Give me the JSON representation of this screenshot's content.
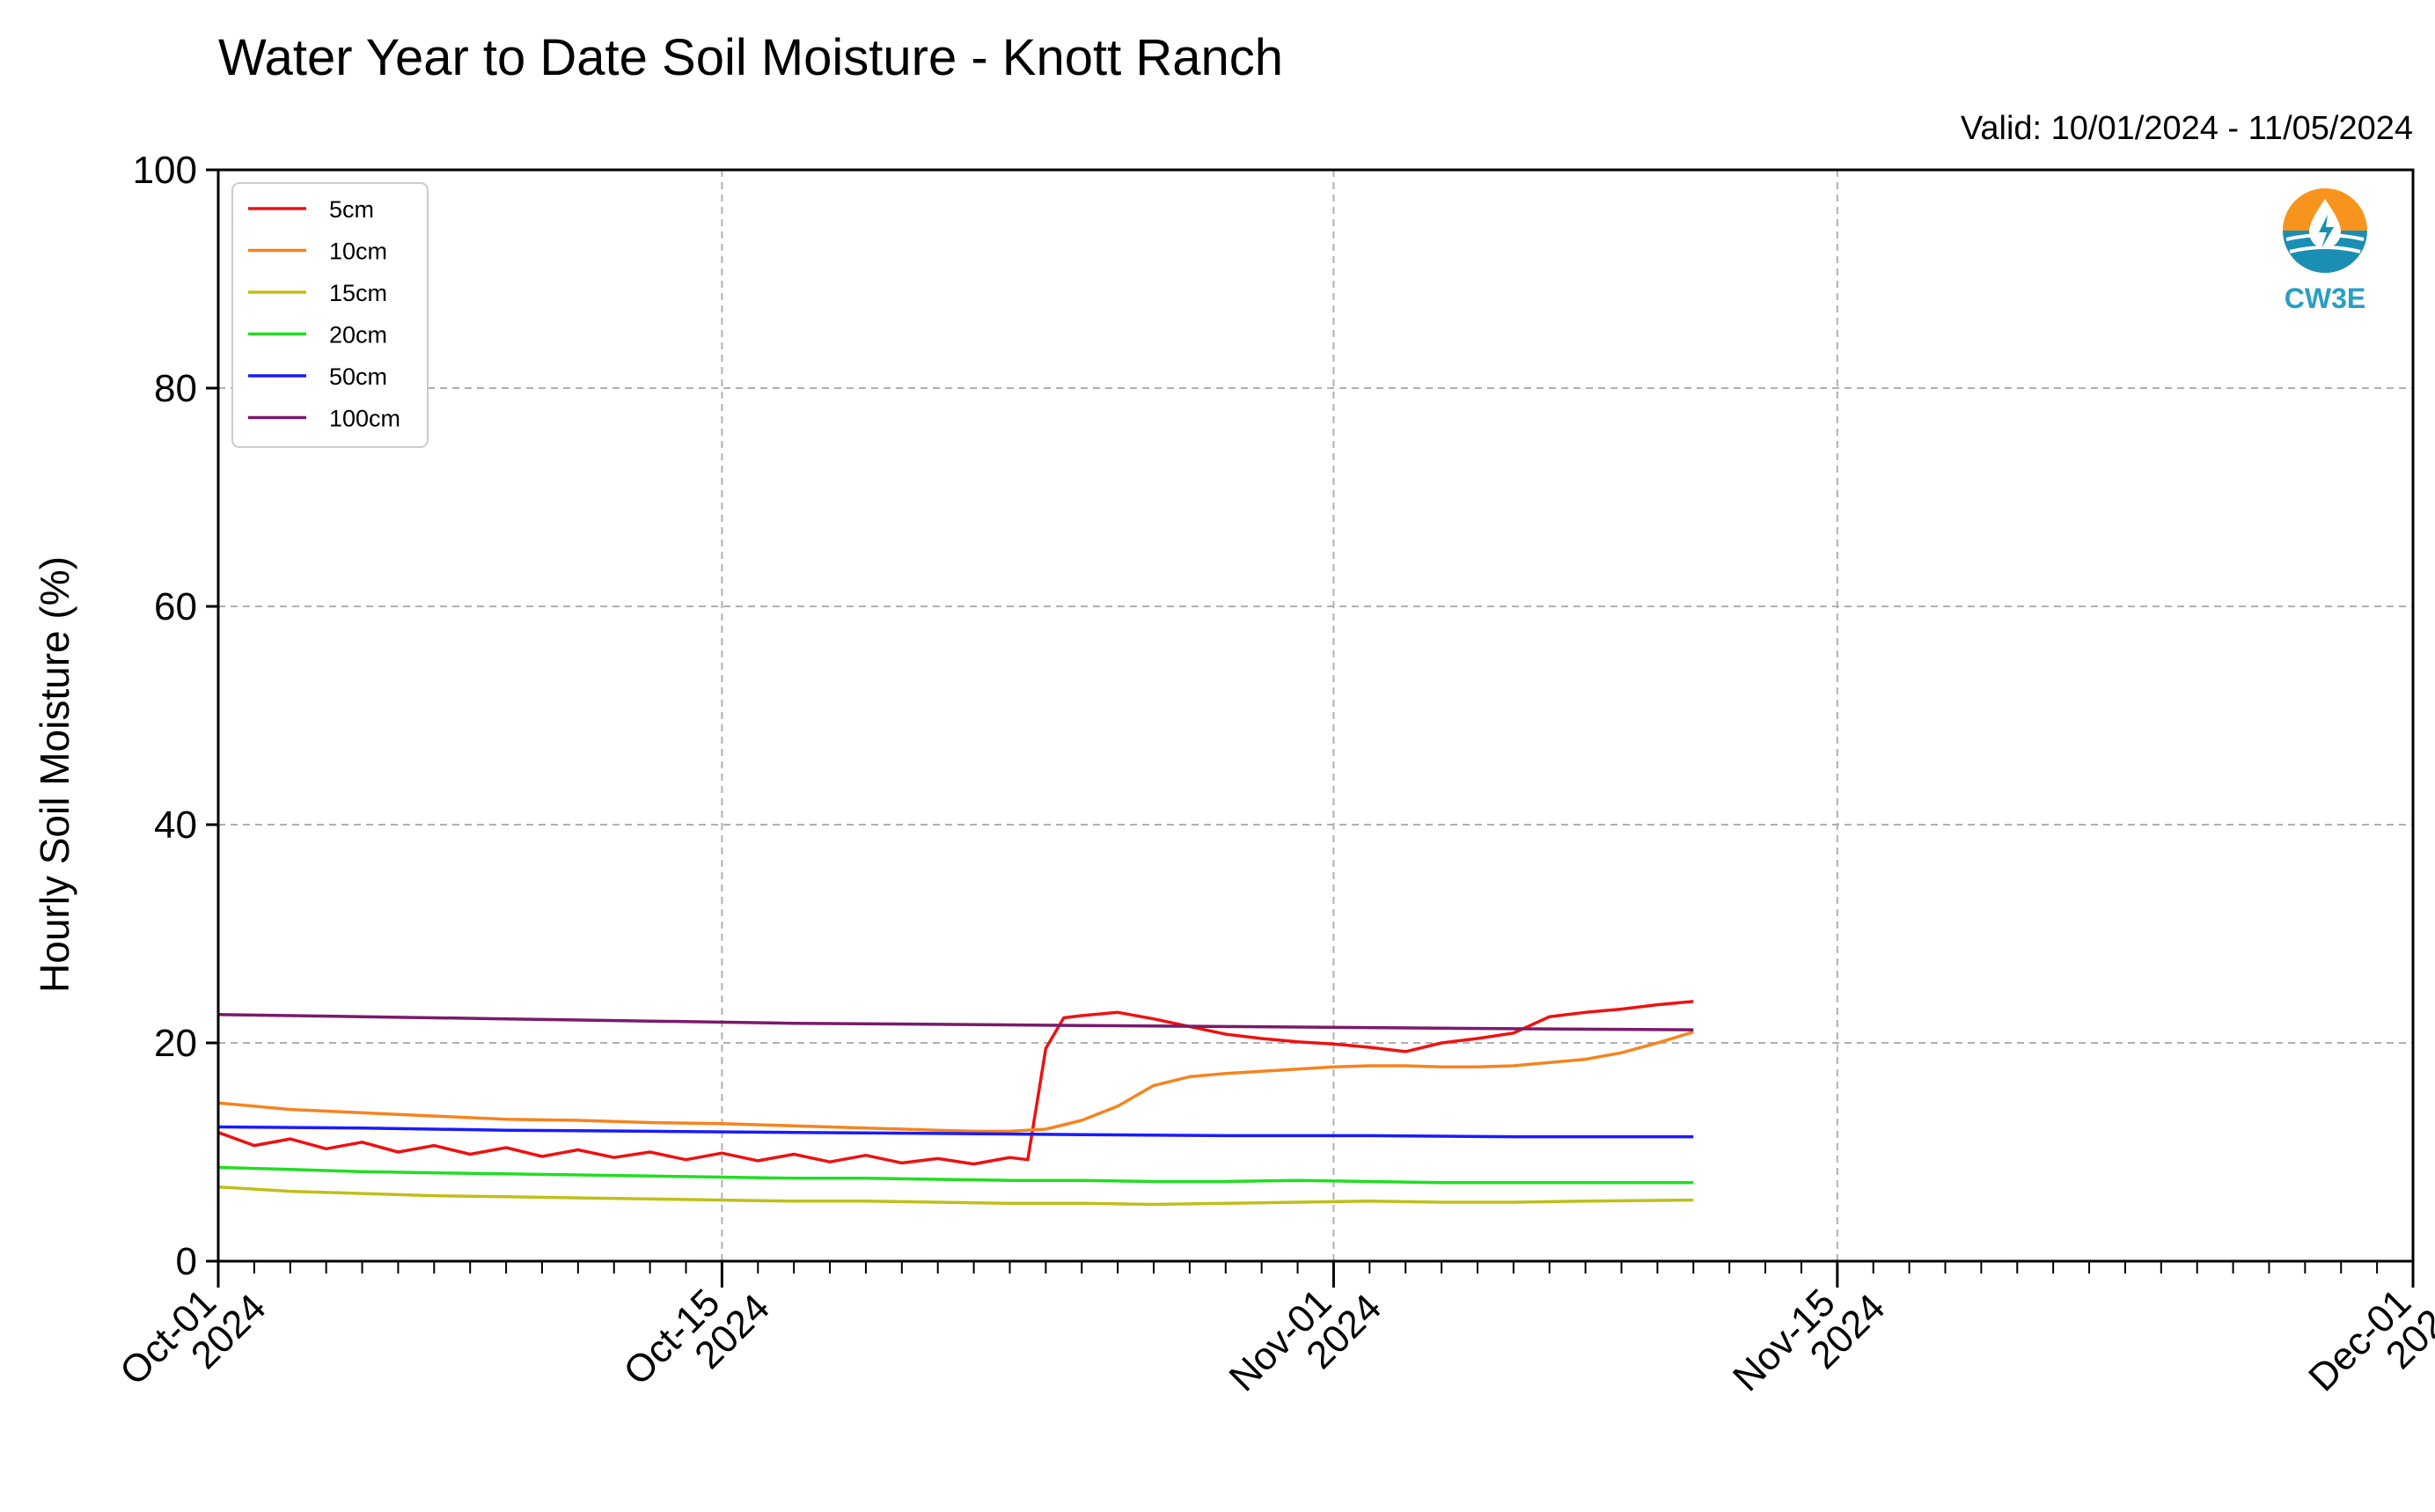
{
  "chart_data": {
    "type": "line",
    "title": "Water Year to Date Soil Moisture - Knott Ranch",
    "valid_text": "Valid: 10/01/2024 - 11/05/2024",
    "ylabel": "Hourly Soil Moisture (%)",
    "xlabel": "",
    "ylim": [
      0,
      100
    ],
    "y_ticks": [
      0,
      20,
      40,
      60,
      80,
      100
    ],
    "xlim": [
      "2024-10-01",
      "2024-12-01"
    ],
    "x_ticks": [
      {
        "date": "2024-10-01",
        "line1": "Oct-01",
        "line2": "2024"
      },
      {
        "date": "2024-10-15",
        "line1": "Oct-15",
        "line2": "2024"
      },
      {
        "date": "2024-11-01",
        "line1": "Nov-01",
        "line2": "2024"
      },
      {
        "date": "2024-11-15",
        "line1": "Nov-15",
        "line2": "2024"
      },
      {
        "date": "2024-12-01",
        "line1": "Dec-01",
        "line2": "2024"
      }
    ],
    "grid": true,
    "legend_position": "top-left",
    "logo_text": "CW3E",
    "series": [
      {
        "name": "5cm",
        "color": "#ee1111",
        "points": [
          [
            "2024-10-01",
            11.8
          ],
          [
            "2024-10-02",
            10.6
          ],
          [
            "2024-10-03",
            11.2
          ],
          [
            "2024-10-04",
            10.3
          ],
          [
            "2024-10-05",
            10.9
          ],
          [
            "2024-10-06",
            10.0
          ],
          [
            "2024-10-07",
            10.6
          ],
          [
            "2024-10-08",
            9.8
          ],
          [
            "2024-10-09",
            10.4
          ],
          [
            "2024-10-10",
            9.6
          ],
          [
            "2024-10-11",
            10.2
          ],
          [
            "2024-10-12",
            9.5
          ],
          [
            "2024-10-13",
            10.0
          ],
          [
            "2024-10-14",
            9.3
          ],
          [
            "2024-10-15",
            9.9
          ],
          [
            "2024-10-16",
            9.2
          ],
          [
            "2024-10-17",
            9.8
          ],
          [
            "2024-10-18",
            9.1
          ],
          [
            "2024-10-19",
            9.7
          ],
          [
            "2024-10-20",
            9.0
          ],
          [
            "2024-10-21",
            9.4
          ],
          [
            "2024-10-22",
            8.9
          ],
          [
            "2024-10-23",
            9.5
          ],
          [
            "2024-10-23T12:00",
            9.3
          ],
          [
            "2024-10-24",
            19.5
          ],
          [
            "2024-10-24T12:00",
            22.3
          ],
          [
            "2024-10-25",
            22.5
          ],
          [
            "2024-10-26",
            22.8
          ],
          [
            "2024-10-27",
            22.2
          ],
          [
            "2024-10-28",
            21.5
          ],
          [
            "2024-10-29",
            20.8
          ],
          [
            "2024-10-30",
            20.4
          ],
          [
            "2024-10-31",
            20.1
          ],
          [
            "2024-11-01",
            19.9
          ],
          [
            "2024-11-02",
            19.6
          ],
          [
            "2024-11-03",
            19.2
          ],
          [
            "2024-11-04",
            20.0
          ],
          [
            "2024-11-05",
            20.4
          ],
          [
            "2024-11-06",
            20.9
          ],
          [
            "2024-11-07",
            22.4
          ],
          [
            "2024-11-08",
            22.8
          ],
          [
            "2024-11-09",
            23.1
          ],
          [
            "2024-11-10",
            23.5
          ],
          [
            "2024-11-11",
            23.8
          ]
        ]
      },
      {
        "name": "10cm",
        "color": "#f5841f",
        "points": [
          [
            "2024-10-01",
            14.5
          ],
          [
            "2024-10-03",
            13.9
          ],
          [
            "2024-10-05",
            13.6
          ],
          [
            "2024-10-07",
            13.3
          ],
          [
            "2024-10-09",
            13.0
          ],
          [
            "2024-10-11",
            12.9
          ],
          [
            "2024-10-13",
            12.7
          ],
          [
            "2024-10-15",
            12.6
          ],
          [
            "2024-10-17",
            12.4
          ],
          [
            "2024-10-19",
            12.2
          ],
          [
            "2024-10-21",
            12.0
          ],
          [
            "2024-10-22",
            11.9
          ],
          [
            "2024-10-23",
            11.9
          ],
          [
            "2024-10-24",
            12.1
          ],
          [
            "2024-10-25",
            12.9
          ],
          [
            "2024-10-26",
            14.2
          ],
          [
            "2024-10-27",
            16.1
          ],
          [
            "2024-10-28",
            16.9
          ],
          [
            "2024-10-29",
            17.2
          ],
          [
            "2024-10-30",
            17.4
          ],
          [
            "2024-10-31",
            17.6
          ],
          [
            "2024-11-01",
            17.8
          ],
          [
            "2024-11-02",
            17.9
          ],
          [
            "2024-11-03",
            17.9
          ],
          [
            "2024-11-04",
            17.8
          ],
          [
            "2024-11-05",
            17.8
          ],
          [
            "2024-11-06",
            17.9
          ],
          [
            "2024-11-07",
            18.2
          ],
          [
            "2024-11-08",
            18.5
          ],
          [
            "2024-11-09",
            19.1
          ],
          [
            "2024-11-10",
            20.0
          ],
          [
            "2024-11-11",
            21.0
          ]
        ]
      },
      {
        "name": "15cm",
        "color": "#bfbf1a",
        "points": [
          [
            "2024-10-01",
            6.8
          ],
          [
            "2024-10-03",
            6.4
          ],
          [
            "2024-10-05",
            6.2
          ],
          [
            "2024-10-07",
            6.0
          ],
          [
            "2024-10-09",
            5.9
          ],
          [
            "2024-10-11",
            5.8
          ],
          [
            "2024-10-13",
            5.7
          ],
          [
            "2024-10-15",
            5.6
          ],
          [
            "2024-10-17",
            5.5
          ],
          [
            "2024-10-19",
            5.5
          ],
          [
            "2024-10-21",
            5.4
          ],
          [
            "2024-10-23",
            5.3
          ],
          [
            "2024-10-25",
            5.3
          ],
          [
            "2024-10-27",
            5.2
          ],
          [
            "2024-10-29",
            5.3
          ],
          [
            "2024-10-31",
            5.4
          ],
          [
            "2024-11-02",
            5.5
          ],
          [
            "2024-11-04",
            5.4
          ],
          [
            "2024-11-06",
            5.4
          ],
          [
            "2024-11-08",
            5.5
          ],
          [
            "2024-11-11",
            5.6
          ]
        ]
      },
      {
        "name": "20cm",
        "color": "#22dd22",
        "points": [
          [
            "2024-10-01",
            8.6
          ],
          [
            "2024-10-03",
            8.4
          ],
          [
            "2024-10-05",
            8.2
          ],
          [
            "2024-10-07",
            8.1
          ],
          [
            "2024-10-09",
            8.0
          ],
          [
            "2024-10-11",
            7.9
          ],
          [
            "2024-10-13",
            7.8
          ],
          [
            "2024-10-15",
            7.7
          ],
          [
            "2024-10-17",
            7.6
          ],
          [
            "2024-10-19",
            7.6
          ],
          [
            "2024-10-21",
            7.5
          ],
          [
            "2024-10-23",
            7.4
          ],
          [
            "2024-10-25",
            7.4
          ],
          [
            "2024-10-27",
            7.3
          ],
          [
            "2024-10-29",
            7.3
          ],
          [
            "2024-10-31",
            7.4
          ],
          [
            "2024-11-02",
            7.3
          ],
          [
            "2024-11-04",
            7.2
          ],
          [
            "2024-11-06",
            7.2
          ],
          [
            "2024-11-08",
            7.2
          ],
          [
            "2024-11-11",
            7.2
          ]
        ]
      },
      {
        "name": "50cm",
        "color": "#1a1aff",
        "points": [
          [
            "2024-10-01",
            12.3
          ],
          [
            "2024-10-05",
            12.2
          ],
          [
            "2024-10-09",
            12.0
          ],
          [
            "2024-10-13",
            11.9
          ],
          [
            "2024-10-17",
            11.8
          ],
          [
            "2024-10-21",
            11.7
          ],
          [
            "2024-10-25",
            11.6
          ],
          [
            "2024-10-29",
            11.5
          ],
          [
            "2024-11-02",
            11.5
          ],
          [
            "2024-11-06",
            11.4
          ],
          [
            "2024-11-11",
            11.4
          ]
        ]
      },
      {
        "name": "100cm",
        "color": "#7a1a6a",
        "points": [
          [
            "2024-10-01",
            22.6
          ],
          [
            "2024-10-05",
            22.4
          ],
          [
            "2024-10-09",
            22.2
          ],
          [
            "2024-10-13",
            22.0
          ],
          [
            "2024-10-17",
            21.8
          ],
          [
            "2024-10-21",
            21.7
          ],
          [
            "2024-10-25",
            21.6
          ],
          [
            "2024-10-29",
            21.5
          ],
          [
            "2024-11-02",
            21.4
          ],
          [
            "2024-11-06",
            21.3
          ],
          [
            "2024-11-11",
            21.2
          ]
        ]
      }
    ]
  }
}
